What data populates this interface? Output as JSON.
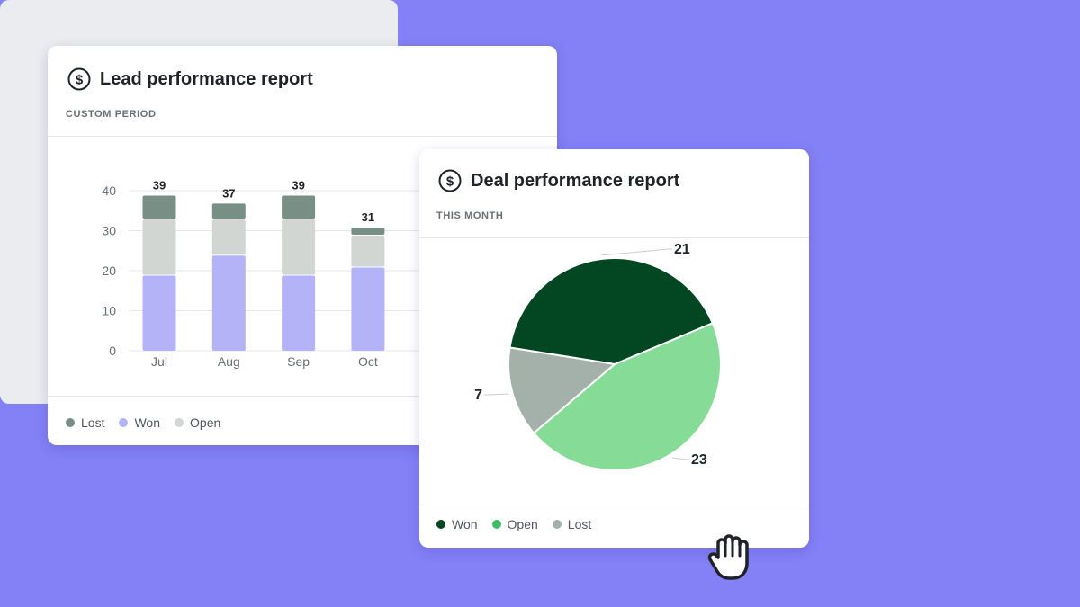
{
  "lead_card": {
    "icon": "dollar-circle-icon",
    "title": "Lead performance report",
    "period": "CUSTOM PERIOD",
    "legend": [
      {
        "label": "Lost",
        "color": "#778f85"
      },
      {
        "label": "Won",
        "color": "#b5b3f7"
      },
      {
        "label": "Open",
        "color": "#d2d6d3"
      }
    ]
  },
  "deal_card": {
    "icon": "dollar-circle-icon",
    "title": "Deal performance report",
    "period": "THIS MONTH",
    "legend": [
      {
        "label": "Won",
        "color": "#034622"
      },
      {
        "label": "Open",
        "color": "#3dbd68"
      },
      {
        "label": "Lost",
        "color": "#a4b1aa"
      }
    ]
  },
  "placeholder": {
    "icon": "plus-icon"
  },
  "cursor": {
    "icon": "grab-hand-icon"
  },
  "chart_data": [
    {
      "type": "bar",
      "stacked": true,
      "categories": [
        "Jul",
        "Aug",
        "Sep",
        "Oct"
      ],
      "series": [
        {
          "name": "Won",
          "values": [
            19,
            24,
            19,
            21
          ],
          "color": "#b5b3f7"
        },
        {
          "name": "Open",
          "values": [
            14,
            9,
            14,
            8
          ],
          "color": "#d2d6d3"
        },
        {
          "name": "Lost",
          "values": [
            6,
            4,
            6,
            2
          ],
          "color": "#778f85"
        }
      ],
      "totals": [
        39,
        37,
        39,
        31
      ],
      "yticks": [
        0,
        10,
        20,
        30,
        40
      ],
      "ylim": [
        0,
        40
      ],
      "grid": true,
      "legend_position": "bottom-left"
    },
    {
      "type": "pie",
      "slices": [
        {
          "name": "Won",
          "value": 21,
          "color": "#034622"
        },
        {
          "name": "Open",
          "value": 23,
          "color": "#86dc96"
        },
        {
          "name": "Lost",
          "value": 7,
          "color": "#a4b1aa"
        }
      ],
      "legend_position": "bottom-left"
    }
  ]
}
